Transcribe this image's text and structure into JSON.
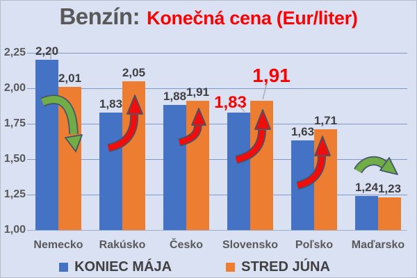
{
  "header": {
    "title_prefix": "Benzín:",
    "title_main": "Konečná cena (Eur/liter)",
    "title_prefix_color": "#595959",
    "title_main_color": "#FF0000"
  },
  "chart_data": {
    "type": "bar",
    "title": "Benzín: Konečná cena (Eur/liter)",
    "unit": "Eur/liter",
    "categories": [
      "Nemecko",
      "Rakúsko",
      "Česko",
      "Slovensko",
      "Poľsko",
      "Maďarsko"
    ],
    "series": [
      {
        "name": "KONIEC MÁJA",
        "color": "#4472C4",
        "values": [
          2.2,
          1.83,
          1.88,
          1.83,
          1.63,
          1.24
        ],
        "value_labels": [
          "2,20",
          "1,83",
          "1,88",
          "1,83",
          "1,63",
          "1,24"
        ]
      },
      {
        "name": "STRED JÚNA",
        "color": "#ED7D31",
        "values": [
          2.01,
          2.05,
          1.91,
          1.91,
          1.71,
          1.23
        ],
        "value_labels": [
          "2,01",
          "2,05",
          "1,91",
          "1,91",
          "1,71",
          "1,23"
        ]
      }
    ],
    "ylim": [
      1.0,
      2.25
    ],
    "ytick_values": [
      1.0,
      1.25,
      1.5,
      1.75,
      2.0,
      2.25
    ],
    "ytick_labels": [
      "1,00",
      "1,25",
      "1,50",
      "1,75",
      "2,00",
      "2,25"
    ],
    "grid": true,
    "legend_position": "bottom",
    "highlight": {
      "category": "Slovensko",
      "label_color": "#FF0000"
    },
    "trends": [
      {
        "category": "Nemecko",
        "direction": "down",
        "color": "#70AD47"
      },
      {
        "category": "Rakúsko",
        "direction": "up",
        "color": "#F20D0D"
      },
      {
        "category": "Česko",
        "direction": "up",
        "color": "#F20D0D"
      },
      {
        "category": "Slovensko",
        "direction": "up",
        "color": "#F20D0D"
      },
      {
        "category": "Poľsko",
        "direction": "up",
        "color": "#F20D0D"
      },
      {
        "category": "Maďarsko",
        "direction": "slightly-down",
        "color": "#70AD47"
      }
    ],
    "colors": {
      "background": "#D9E1F2",
      "gridline": "#7E99C8",
      "baseline": "#9FAFCC",
      "axis_label": "#595959",
      "value_label": "#3F3F3F",
      "legend_text": "#404040",
      "arrow_outline": "#44546A",
      "leader_line": "#A6A6A6"
    }
  }
}
